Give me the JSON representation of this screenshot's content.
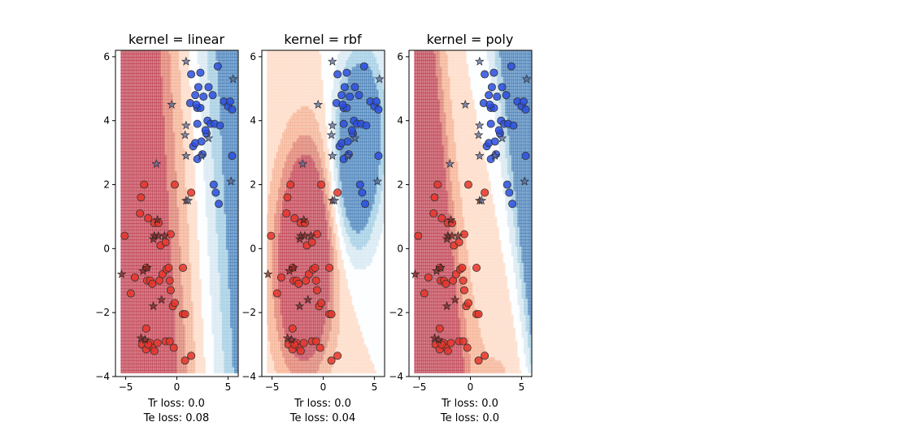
{
  "chart_data": [
    {
      "type": "scatter",
      "title": "kernel = linear",
      "loss_lines": [
        "Tr loss: 0.0",
        "Te loss: 0.08"
      ],
      "xlim": [
        -6,
        6
      ],
      "ylim": [
        -4,
        6.2
      ],
      "xticks": [
        -5,
        0,
        5
      ],
      "yticks": [
        -4,
        -2,
        0,
        2,
        4,
        6
      ],
      "xtick_labels": [
        "−5",
        "0",
        "5"
      ],
      "ytick_labels": [
        "−4",
        "−2",
        "0",
        "2",
        "4",
        "6"
      ],
      "decision_function": {
        "kind": "linear",
        "a": 0.42,
        "b": 0.07,
        "c": -0.9,
        "scale": 1.0
      },
      "colors": {
        "class0": "#e8352a",
        "class1": "#2a4fe0",
        "edge": "#333333"
      }
    },
    {
      "type": "scatter",
      "title": "kernel = rbf",
      "loss_lines": [
        "Tr loss: 0.0",
        "Te loss: 0.04"
      ],
      "xlim": [
        -6,
        6
      ],
      "ylim": [
        -4,
        6.2
      ],
      "xticks": [
        -5,
        0,
        5
      ],
      "yticks": [
        -4,
        -2,
        0,
        2,
        4,
        6
      ],
      "xtick_labels": [
        "−5",
        "0",
        "5"
      ],
      "ytick_labels": [
        "−4",
        "−2",
        "0",
        "2",
        "4",
        "6"
      ],
      "decision_function": {
        "kind": "rbf",
        "centers0": [
          [
            -2,
            -1.5
          ],
          [
            -1.5,
            1
          ]
        ],
        "centers1": [
          [
            3.8,
            4.2
          ],
          [
            3,
            2
          ]
        ],
        "width": 2.0
      },
      "colors": {
        "class0": "#e8352a",
        "class1": "#2a4fe0",
        "edge": "#333333"
      }
    },
    {
      "type": "scatter",
      "title": "kernel = poly",
      "loss_lines": [
        "Tr loss: 0.0",
        "Te loss: 0.0"
      ],
      "xlim": [
        -6,
        6
      ],
      "ylim": [
        -4,
        6.2
      ],
      "xticks": [
        -5,
        0,
        5
      ],
      "yticks": [
        -4,
        -2,
        0,
        2,
        4,
        6
      ],
      "xtick_labels": [
        "−5",
        "0",
        "5"
      ],
      "ytick_labels": [
        "−4",
        "−2",
        "0",
        "2",
        "4",
        "6"
      ],
      "decision_function": {
        "kind": "poly"
      },
      "colors": {
        "class0": "#e8352a",
        "class1": "#2a4fe0",
        "edge": "#333333"
      }
    }
  ],
  "train_points": {
    "class0": [
      [
        -5.1,
        0.4
      ],
      [
        -4.5,
        -1.4
      ],
      [
        -4.1,
        -0.9
      ],
      [
        -3.6,
        1.1
      ],
      [
        -3.5,
        1.6
      ],
      [
        -3.2,
        2.0
      ],
      [
        -3.0,
        -0.6
      ],
      [
        -2.9,
        -1.0
      ],
      [
        -2.6,
        -1.0
      ],
      [
        -2.4,
        -1.1
      ],
      [
        -2.8,
        0.95
      ],
      [
        -2.2,
        0.8
      ],
      [
        -1.8,
        0.8
      ],
      [
        -1.7,
        -1.0
      ],
      [
        -1.6,
        0.1
      ],
      [
        -1.4,
        -0.8
      ],
      [
        -1.0,
        -0.65
      ],
      [
        -0.8,
        -0.6
      ],
      [
        -0.7,
        -1.0
      ],
      [
        -0.6,
        -1.3
      ],
      [
        -1.1,
        0.2
      ],
      [
        -0.6,
        0.45
      ],
      [
        -0.2,
        2.0
      ],
      [
        0.6,
        -0.6
      ],
      [
        -0.4,
        -1.8
      ],
      [
        -0.2,
        -1.7
      ],
      [
        0.6,
        -2.05
      ],
      [
        0.8,
        -2.05
      ],
      [
        -3.0,
        -2.5
      ],
      [
        -2.6,
        -2.95
      ],
      [
        -2.4,
        -3.1
      ],
      [
        -2.2,
        -3.2
      ],
      [
        -1.9,
        -2.95
      ],
      [
        -1.1,
        -2.9
      ],
      [
        -0.7,
        -2.9
      ],
      [
        -0.3,
        -3.1
      ],
      [
        -3.4,
        -3.0
      ],
      [
        -3.0,
        -3.15
      ],
      [
        -2.8,
        -3.0
      ],
      [
        0.8,
        -3.5
      ],
      [
        1.4,
        -3.35
      ],
      [
        1.4,
        1.75
      ]
    ],
    "class1": [
      [
        1.6,
        3.2
      ],
      [
        1.8,
        3.3
      ],
      [
        2.0,
        3.9
      ],
      [
        2.0,
        4.4
      ],
      [
        2.1,
        5.05
      ],
      [
        2.3,
        4.4
      ],
      [
        2.6,
        4.75
      ],
      [
        2.9,
        3.6
      ],
      [
        3.0,
        4.0
      ],
      [
        3.1,
        5.05
      ],
      [
        3.3,
        3.9
      ],
      [
        3.5,
        4.8
      ],
      [
        3.7,
        3.9
      ],
      [
        4.0,
        5.7
      ],
      [
        4.2,
        3.85
      ],
      [
        2.4,
        3.35
      ],
      [
        1.3,
        4.55
      ],
      [
        1.4,
        5.45
      ],
      [
        1.9,
        4.5
      ],
      [
        2.3,
        5.5
      ],
      [
        1.8,
        4.8
      ],
      [
        4.6,
        4.6
      ],
      [
        5.0,
        4.45
      ],
      [
        5.4,
        4.35
      ],
      [
        5.4,
        2.9
      ],
      [
        3.6,
        2.0
      ],
      [
        4.1,
        1.4
      ],
      [
        3.8,
        1.75
      ],
      [
        2.5,
        2.95
      ],
      [
        2.8,
        3.7
      ],
      [
        2.0,
        2.8
      ],
      [
        5.2,
        4.6
      ]
    ]
  },
  "test_points": {
    "class0": [
      [
        -5.4,
        -0.8
      ],
      [
        -3.3,
        -0.7
      ],
      [
        -2.9,
        -0.6
      ],
      [
        -2.3,
        0.3
      ],
      [
        -2.2,
        0.4
      ],
      [
        -1.9,
        0.9
      ],
      [
        -1.8,
        0.4
      ],
      [
        -2.3,
        -1.8
      ],
      [
        -1.5,
        -1.6
      ],
      [
        -3.5,
        -2.8
      ],
      [
        -3.1,
        -2.85
      ],
      [
        0.9,
        1.5
      ],
      [
        -1.2,
        0.4
      ]
    ],
    "class1": [
      [
        0.9,
        5.85
      ],
      [
        -0.5,
        4.5
      ],
      [
        0.9,
        3.85
      ],
      [
        0.9,
        2.9
      ],
      [
        2.4,
        2.9
      ],
      [
        3.1,
        3.45
      ],
      [
        5.5,
        5.3
      ],
      [
        5.3,
        2.1
      ],
      [
        1.1,
        1.5
      ],
      [
        0.8,
        3.55
      ],
      [
        -2.0,
        2.65
      ]
    ]
  }
}
